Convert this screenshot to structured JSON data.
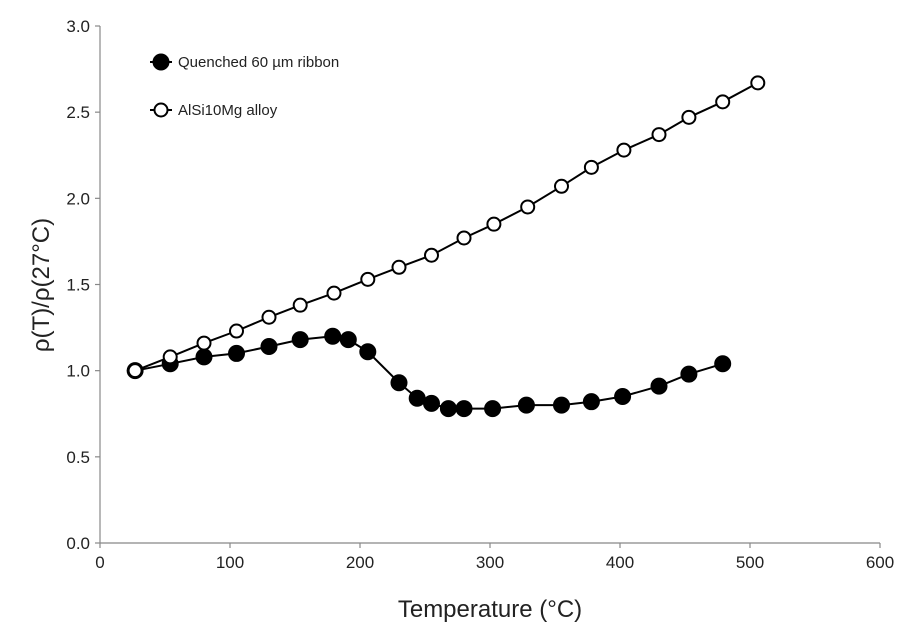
{
  "chart_data": {
    "type": "line",
    "title": "",
    "xlabel": "Temperature (°C)",
    "ylabel": "ρ(T)/ρ(27°C)",
    "xlim": [
      0,
      600
    ],
    "ylim": [
      0.0,
      3.0
    ],
    "xticks": [
      0,
      100,
      200,
      300,
      400,
      500,
      600
    ],
    "yticks": [
      0.0,
      0.5,
      1.0,
      1.5,
      2.0,
      2.5,
      3.0
    ],
    "xtick_labels": [
      "0",
      "100",
      "200",
      "300",
      "400",
      "500",
      "600"
    ],
    "ytick_labels": [
      "0.0",
      "0.5",
      "1.0",
      "1.5",
      "2.0",
      "2.5",
      "3.0"
    ],
    "grid": false,
    "legend_position": "top-left",
    "series": [
      {
        "name": "Quenched 60 µm ribbon",
        "marker": "filled-circle",
        "x": [
          27,
          54,
          80,
          105,
          130,
          154,
          179,
          191,
          206,
          230,
          244,
          255,
          268,
          280,
          302,
          328,
          355,
          378,
          402,
          430,
          453,
          479
        ],
        "y": [
          1.0,
          1.04,
          1.08,
          1.1,
          1.14,
          1.18,
          1.2,
          1.18,
          1.11,
          0.93,
          0.84,
          0.81,
          0.78,
          0.78,
          0.78,
          0.8,
          0.8,
          0.82,
          0.85,
          0.91,
          0.98,
          1.04
        ]
      },
      {
        "name": "AlSi10Mg alloy",
        "marker": "open-circle",
        "x": [
          27,
          54,
          80,
          105,
          130,
          154,
          180,
          206,
          230,
          255,
          280,
          303,
          329,
          355,
          378,
          403,
          430,
          453,
          479,
          506
        ],
        "y": [
          1.0,
          1.08,
          1.16,
          1.23,
          1.31,
          1.38,
          1.45,
          1.53,
          1.6,
          1.67,
          1.77,
          1.85,
          1.95,
          2.07,
          2.18,
          2.28,
          2.37,
          2.47,
          2.56,
          2.67
        ]
      }
    ],
    "colors": {
      "line": "#000000",
      "marker_fill_filled": "#000000",
      "marker_fill_open": "#ffffff"
    }
  }
}
